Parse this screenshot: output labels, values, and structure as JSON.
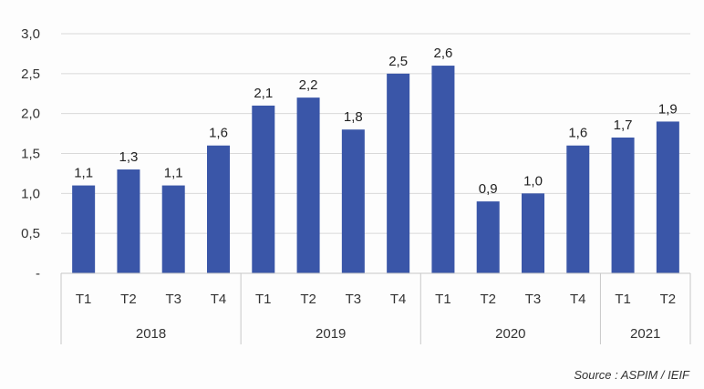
{
  "chart_data": {
    "type": "bar",
    "categories": [
      "T1",
      "T2",
      "T3",
      "T4",
      "T1",
      "T2",
      "T3",
      "T4",
      "T1",
      "T2",
      "T3",
      "T4",
      "T1",
      "T2"
    ],
    "groups": [
      {
        "label": "2018",
        "count": 4
      },
      {
        "label": "2019",
        "count": 4
      },
      {
        "label": "2020",
        "count": 4
      },
      {
        "label": "2021",
        "count": 2
      }
    ],
    "values": [
      1.1,
      1.3,
      1.1,
      1.6,
      2.1,
      2.2,
      1.8,
      2.5,
      2.6,
      0.9,
      1.0,
      1.6,
      1.7,
      1.9
    ],
    "value_labels": [
      "1,1",
      "1,3",
      "1,1",
      "1,6",
      "2,1",
      "2,2",
      "1,8",
      "2,5",
      "2,6",
      "0,9",
      "1,0",
      "1,6",
      "1,7",
      "1,9"
    ],
    "ylim": [
      0,
      3.0
    ],
    "yticks": [
      0,
      0.5,
      1.0,
      1.5,
      2.0,
      2.5,
      3.0
    ],
    "ytick_labels": [
      "-",
      "0,5",
      "1,0",
      "1,5",
      "2,0",
      "2,5",
      "3,0"
    ],
    "grid": true,
    "bar_color": "#3a56a8",
    "title": "",
    "xlabel": "",
    "ylabel": ""
  },
  "source_note": "Source : ASPIM / IEIF"
}
